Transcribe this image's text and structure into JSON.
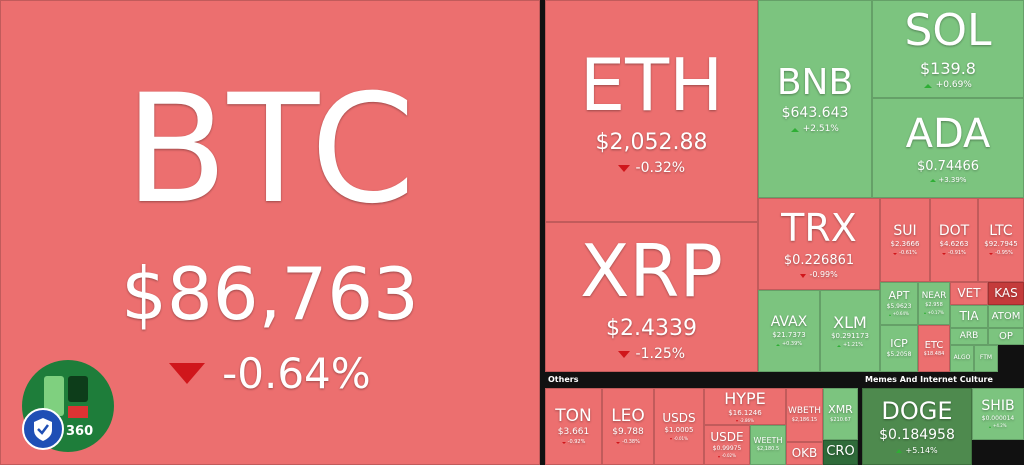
{
  "tiles": [
    {
      "symbol": "BTC",
      "price": "$86,763",
      "change": "-0.64%",
      "color": "#ec6f6f"
    },
    {
      "symbol": "ETH",
      "price": "$2,052.88",
      "change": "-0.32%",
      "color": "#ec6f6f"
    },
    {
      "symbol": "XRP",
      "price": "$2.4339",
      "change": "-1.25%",
      "color": "#ec6f6f"
    },
    {
      "symbol": "BNB",
      "price": "$643.643",
      "change": "+2.51%",
      "color": "#7cc47f"
    },
    {
      "symbol": "SOL",
      "price": "$139.8",
      "change": "+0.69%",
      "color": "#7cc47f"
    },
    {
      "symbol": "ADA",
      "price": "$0.74466",
      "change": "+3.39%",
      "color": "#7cc47f"
    },
    {
      "symbol": "TRX",
      "price": "$0.226861",
      "change": "-0.99%",
      "color": "#ec6f6f"
    },
    {
      "symbol": "SUI",
      "price": "$2.3666",
      "change": "-0.61%",
      "color": "#ec6f6f"
    },
    {
      "symbol": "DOT",
      "price": "$4.6263",
      "change": "-0.91%",
      "color": "#ec6f6f"
    },
    {
      "symbol": "LTC",
      "price": "$92.7945",
      "change": "-0.95%",
      "color": "#ec6f6f"
    },
    {
      "symbol": "AVAX",
      "price": "$21.7373",
      "change": "+0.39%",
      "color": "#7cc47f"
    },
    {
      "symbol": "XLM",
      "price": "$0.291173",
      "change": "+1.21%",
      "color": "#7cc47f"
    },
    {
      "symbol": "APT",
      "price": "$5.9623",
      "change": "+0.64%",
      "color": "#7cc47f"
    },
    {
      "symbol": "NEAR",
      "price": "$2.958",
      "change": "+0.17%",
      "color": "#7cc47f"
    },
    {
      "symbol": "VET",
      "color": "#ec6f6f"
    },
    {
      "symbol": "KAS",
      "color": "#c43b3b"
    },
    {
      "symbol": "TIA",
      "color": "#7cc47f"
    },
    {
      "symbol": "ATOM",
      "color": "#7cc47f"
    },
    {
      "symbol": "ICP",
      "price": "$5.2058",
      "color": "#7cc47f"
    },
    {
      "symbol": "ETC",
      "price": "$18.484",
      "color": "#ec6f6f"
    },
    {
      "symbol": "ARB",
      "color": "#7cc47f"
    },
    {
      "symbol": "OP",
      "color": "#7cc47f"
    },
    {
      "symbol": "ALGO",
      "color": "#7cc47f"
    },
    {
      "symbol": "FTM",
      "color": "#7cc47f"
    },
    {
      "symbol": "TON",
      "price": "$3.661",
      "change": "-0.92%",
      "color": "#ec6f6f"
    },
    {
      "symbol": "LEO",
      "price": "$9.788",
      "change": "-0.38%",
      "color": "#ec6f6f"
    },
    {
      "symbol": "USDS",
      "price": "$1.0005",
      "change": "-0.01%",
      "color": "#ec6f6f"
    },
    {
      "symbol": "HYPE",
      "price": "$16.1246",
      "change": "-2.86%",
      "color": "#ec6f6f"
    },
    {
      "symbol": "USDE",
      "price": "$0.99975",
      "change": "-0.02%",
      "color": "#ec6f6f"
    },
    {
      "symbol": "WEETH",
      "price": "$2,180.5",
      "color": "#7cc47f"
    },
    {
      "symbol": "WBETH",
      "price": "$2,186.15",
      "color": "#ec6f6f"
    },
    {
      "symbol": "XMR",
      "price": "$210.67",
      "color": "#7cc47f"
    },
    {
      "symbol": "OKB",
      "color": "#ec6f6f"
    },
    {
      "symbol": "CRO",
      "color": "#2f6b3a"
    },
    {
      "symbol": "DOGE",
      "price": "$0.184958",
      "change": "+5.14%",
      "color": "#4e8a4e"
    },
    {
      "symbol": "SHIB",
      "price": "$0.000014",
      "change": "+4.2%",
      "color": "#7cc47f"
    }
  ],
  "sections": [
    {
      "title": "Others"
    },
    {
      "title": "Memes And Internet Culture"
    }
  ],
  "badge": "360"
}
